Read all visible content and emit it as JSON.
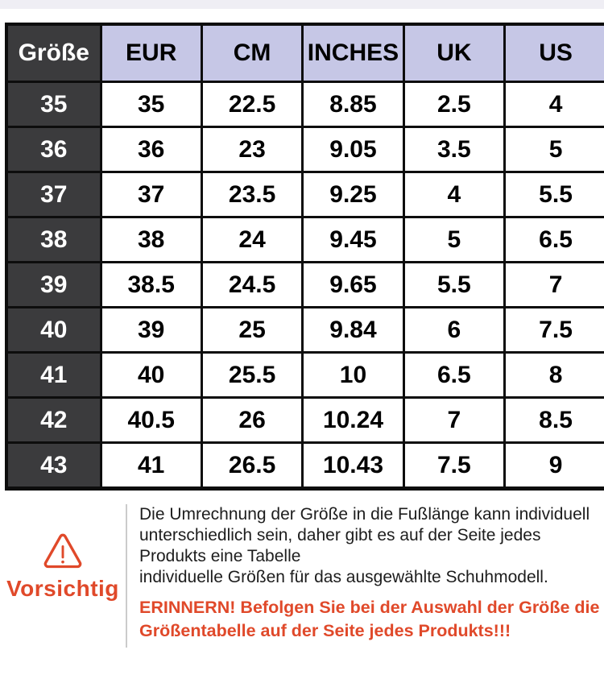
{
  "theme": {
    "top_strip": "#efeef4",
    "header_bg": "#c6c7e6",
    "size_col_bg": "#3b3b3d",
    "table_border": "#0d0d0d",
    "accent": "#e0492a",
    "note_text": "#1d1d1d",
    "divider": "#cbcbcb"
  },
  "size_table": {
    "corner_header": "Größe",
    "columns": [
      "EUR",
      "CM",
      "INCHES",
      "UK",
      "US"
    ],
    "rows": [
      [
        "35",
        "35",
        "22.5",
        "8.85",
        "2.5",
        "4"
      ],
      [
        "36",
        "36",
        "23",
        "9.05",
        "3.5",
        "5"
      ],
      [
        "37",
        "37",
        "23.5",
        "9.25",
        "4",
        "5.5"
      ],
      [
        "38",
        "38",
        "24",
        "9.45",
        "5",
        "6.5"
      ],
      [
        "39",
        "38.5",
        "24.5",
        "9.65",
        "5.5",
        "7"
      ],
      [
        "40",
        "39",
        "25",
        "9.84",
        "6",
        "7.5"
      ],
      [
        "41",
        "40",
        "25.5",
        "10",
        "6.5",
        "8"
      ],
      [
        "42",
        "40.5",
        "26",
        "10.24",
        "7",
        "8.5"
      ],
      [
        "43",
        "41",
        "26.5",
        "10.43",
        "7.5",
        "9"
      ]
    ]
  },
  "caution": {
    "label": "Vorsichtig",
    "note_lines": [
      "Die Umrechnung der Größe in die Fußlänge kann individuell",
      "unterschiedlich sein, daher gibt es auf der Seite jedes",
      "Produkts eine Tabelle",
      "individuelle Größen für das ausgewählte Schuhmodell."
    ],
    "reminder_lines": [
      "ERINNERN! Befolgen Sie bei der Auswahl der Größe die",
      "Größentabelle auf der Seite jedes Produkts!!!"
    ]
  }
}
